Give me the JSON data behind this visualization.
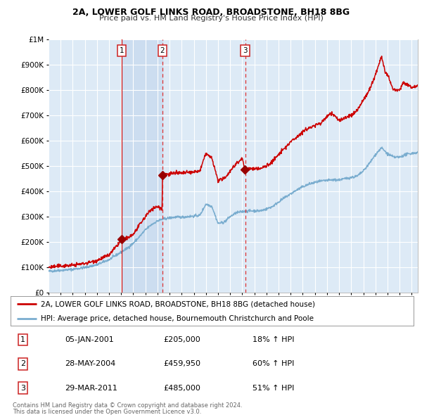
{
  "title": "2A, LOWER GOLF LINKS ROAD, BROADSTONE, BH18 8BG",
  "subtitle": "Price paid vs. HM Land Registry's House Price Index (HPI)",
  "legend_line1": "2A, LOWER GOLF LINKS ROAD, BROADSTONE, BH18 8BG (detached house)",
  "legend_line2": "HPI: Average price, detached house, Bournemouth Christchurch and Poole",
  "transactions": [
    {
      "num": 1,
      "date": "05-JAN-2001",
      "price": 205000,
      "pct": "18%",
      "dir": "↑",
      "year": 2001.04
    },
    {
      "num": 2,
      "date": "28-MAY-2004",
      "price": 459950,
      "pct": "60%",
      "dir": "↑",
      "year": 2004.41
    },
    {
      "num": 3,
      "date": "29-MAR-2011",
      "price": 485000,
      "pct": "51%",
      "dir": "↑",
      "year": 2011.24
    }
  ],
  "footer1": "Contains HM Land Registry data © Crown copyright and database right 2024.",
  "footer2": "This data is licensed under the Open Government Licence v3.0.",
  "red_line_color": "#cc0000",
  "blue_line_color": "#7aadcf",
  "bg_color": "#ddeaf6",
  "shade_color": "#ccddf0",
  "grid_color": "#ffffff",
  "dashed_color": "#dd3333",
  "solid_color": "#cc0000",
  "marker_color": "#990000",
  "ylim": [
    0,
    1000000
  ],
  "yticks": [
    0,
    100000,
    200000,
    300000,
    400000,
    500000,
    600000,
    700000,
    800000,
    900000,
    1000000
  ],
  "xlim_start": 1995.0,
  "xlim_end": 2025.5
}
